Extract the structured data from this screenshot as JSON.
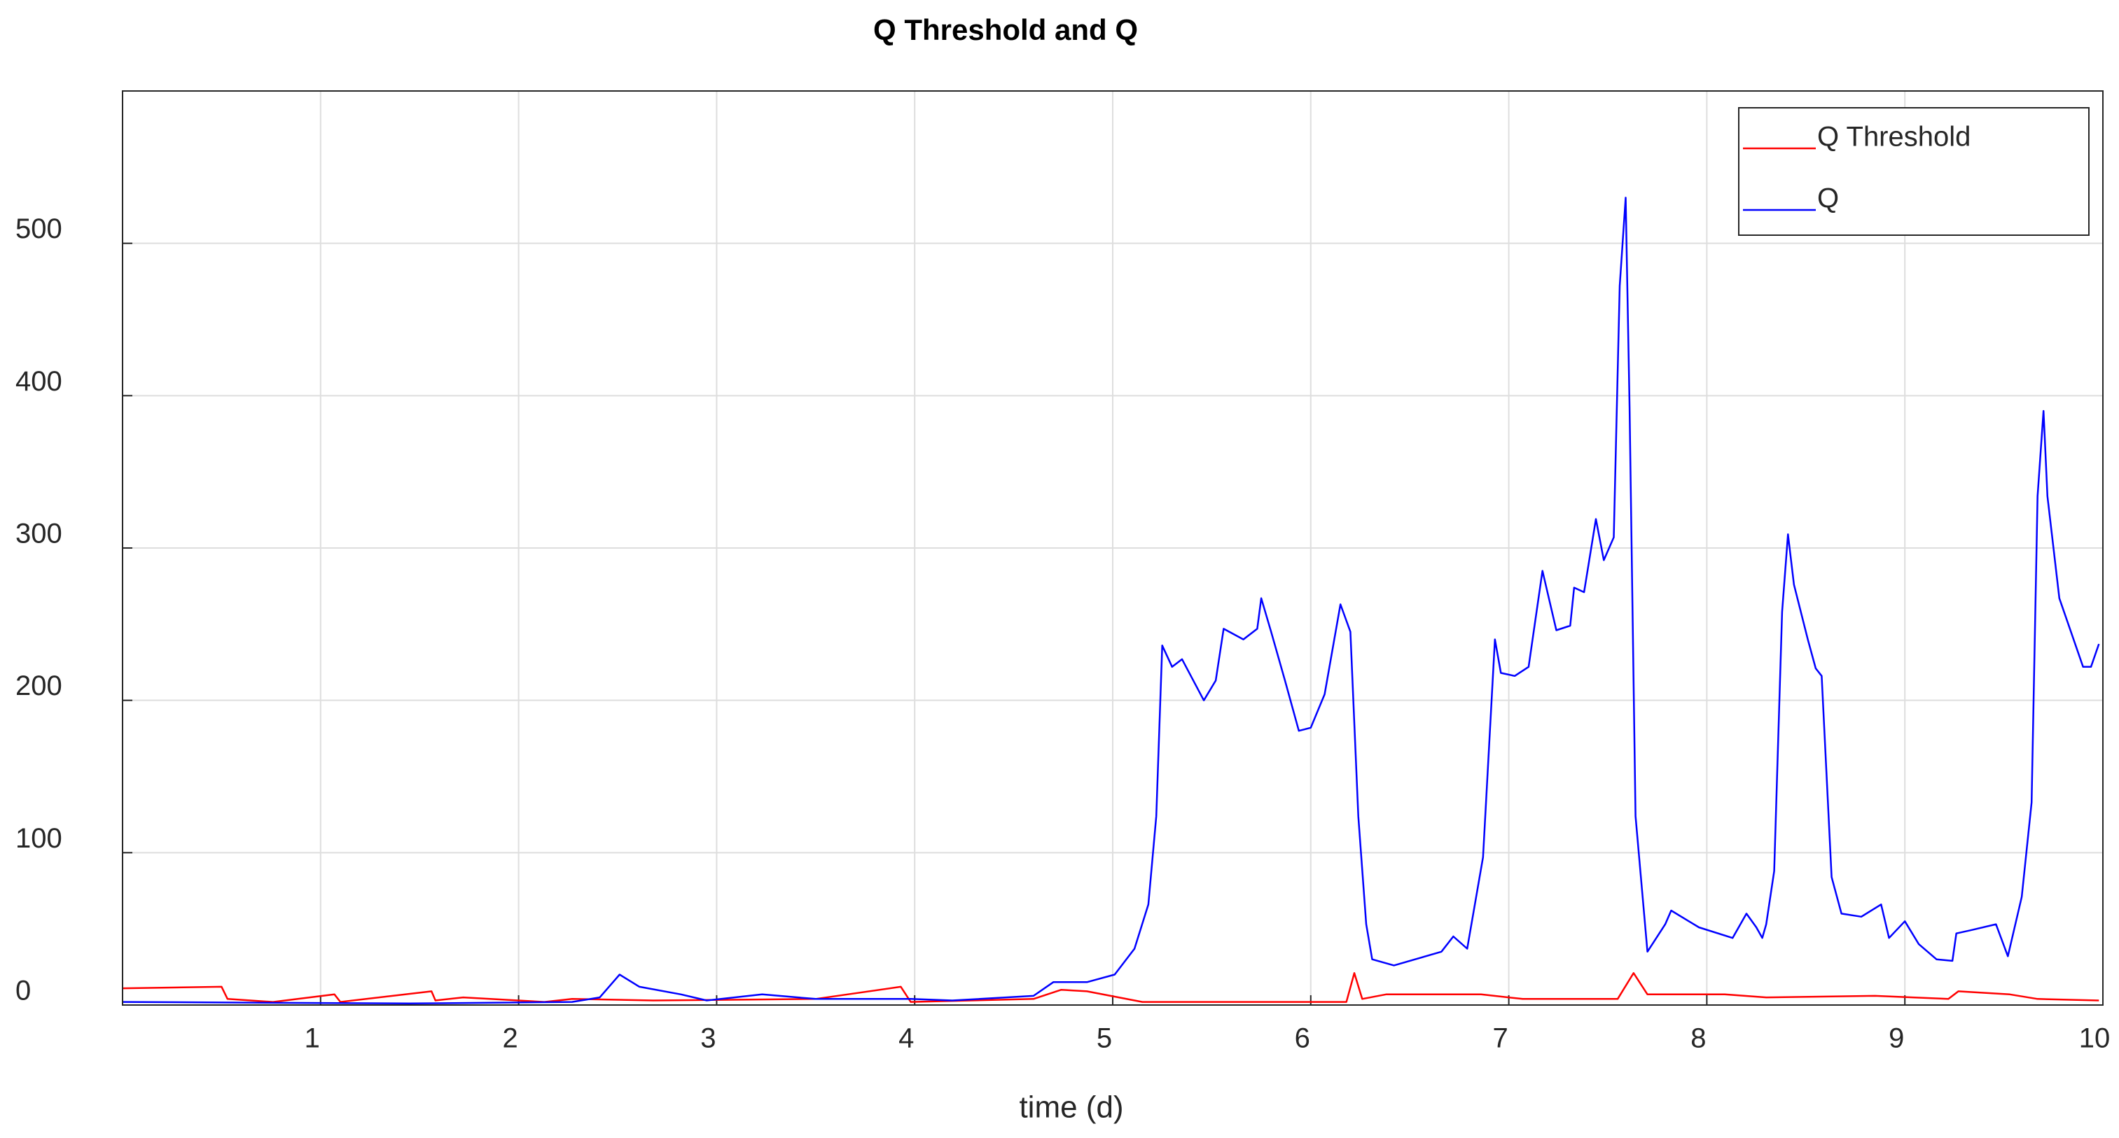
{
  "chart_data": {
    "type": "line",
    "title": "Q Threshold and Q",
    "x_label": "time (d)",
    "xlim": [
      0,
      10
    ],
    "ylim": [
      0,
      600
    ],
    "xticks": [
      1,
      2,
      3,
      4,
      5,
      6,
      7,
      8,
      9,
      10
    ],
    "yticks": [
      0,
      100,
      200,
      300,
      400,
      500
    ],
    "grid": true,
    "legend": "northeast",
    "series": [
      {
        "name": "Q Threshold",
        "color": "#ff0000",
        "x": [
          0,
          0.5,
          0.53,
          0.76,
          1.07,
          1.1,
          1.56,
          1.58,
          1.72,
          2.13,
          2.27,
          2.68,
          3.5,
          3.93,
          3.98,
          4.6,
          4.74,
          4.87,
          5.15,
          5.56,
          6.18,
          6.22,
          6.26,
          6.38,
          6.86,
          7.07,
          7.55,
          7.63,
          7.7,
          8.09,
          8.3,
          8.85,
          9.22,
          9.27,
          9.53,
          9.67,
          9.98
        ],
        "values": [
          11,
          12,
          4,
          2,
          7,
          2,
          9,
          3,
          5,
          2,
          4,
          3,
          4,
          12,
          2,
          4,
          10,
          9,
          2,
          2,
          2,
          21,
          4,
          7,
          7,
          4,
          4,
          21,
          7,
          7,
          5,
          6,
          4,
          9,
          7,
          4,
          3
        ]
      },
      {
        "name": "Q",
        "color": "#0000ff",
        "x": [
          0,
          1.45,
          2.27,
          2.41,
          2.51,
          2.61,
          2.82,
          2.95,
          3.23,
          3.5,
          3.98,
          4.19,
          4.6,
          4.7,
          4.87,
          5.01,
          5.11,
          5.18,
          5.22,
          5.25,
          5.3,
          5.35,
          5.46,
          5.52,
          5.56,
          5.66,
          5.73,
          5.75,
          5.8,
          5.87,
          5.94,
          6.0,
          6.07,
          6.15,
          6.2,
          6.24,
          6.28,
          6.31,
          6.42,
          6.66,
          6.72,
          6.79,
          6.87,
          6.93,
          6.96,
          7.03,
          7.1,
          7.17,
          7.24,
          7.31,
          7.33,
          7.38,
          7.44,
          7.48,
          7.53,
          7.56,
          7.59,
          7.61,
          7.64,
          7.7,
          7.79,
          7.82,
          7.96,
          8.13,
          8.2,
          8.25,
          8.28,
          8.3,
          8.34,
          8.38,
          8.41,
          8.44,
          8.51,
          8.55,
          8.58,
          8.63,
          8.68,
          8.78,
          8.88,
          8.92,
          9.0,
          9.07,
          9.16,
          9.24,
          9.26,
          9.33,
          9.46,
          9.52,
          9.59,
          9.64,
          9.67,
          9.7,
          9.72,
          9.78,
          9.9,
          9.94,
          9.98
        ],
        "values": [
          2,
          1,
          2,
          5,
          20,
          12,
          7,
          3,
          7,
          4,
          4,
          3,
          6,
          15,
          15,
          20,
          37,
          66,
          124,
          236,
          222,
          227,
          200,
          213,
          247,
          240,
          247,
          267,
          245,
          213,
          180,
          182,
          204,
          263,
          245,
          124,
          53,
          30,
          26,
          35,
          45,
          37,
          97,
          240,
          218,
          216,
          222,
          285,
          246,
          249,
          274,
          271,
          319,
          292,
          307,
          472,
          530,
          392,
          124,
          35,
          53,
          62,
          51,
          44,
          60,
          51,
          44,
          53,
          88,
          258,
          309,
          276,
          240,
          221,
          216,
          84,
          60,
          58,
          66,
          44,
          55,
          40,
          30,
          29,
          47,
          49,
          53,
          32,
          71,
          133,
          334,
          390,
          334,
          267,
          222,
          222,
          237
        ]
      }
    ]
  }
}
